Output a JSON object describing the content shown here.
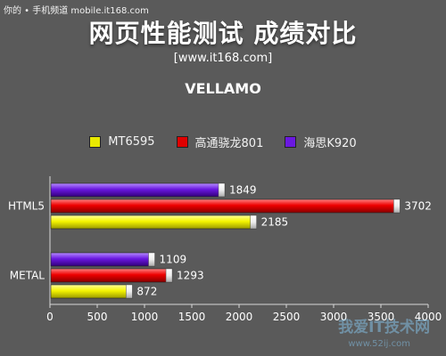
{
  "watermark_top": "你的 • 手机频道 mobile.it168.com",
  "watermark_bottom": "我爱IT技术网",
  "watermark_bottom_url": "www.52ij.com",
  "colors": {
    "series_0": "#e8e800",
    "series_1": "#e00000",
    "series_2": "#6a18e0"
  },
  "chart_data": {
    "type": "bar",
    "orientation": "horizontal",
    "title": "网页性能测试 成绩对比",
    "subtitle": "[www.it168.com]",
    "benchmark": "VELLAMO",
    "categories": [
      "HTML5",
      "METAL"
    ],
    "series": [
      {
        "name": "MT6595",
        "values": [
          2185,
          872
        ]
      },
      {
        "name": "高通骁龙801",
        "values": [
          3702,
          1293
        ]
      },
      {
        "name": "海思K920",
        "values": [
          1849,
          1109
        ]
      }
    ],
    "xlim": [
      0,
      4000
    ],
    "xticks": [
      "0",
      "500",
      "1000",
      "1500",
      "2000",
      "2500",
      "3000",
      "3500",
      "4000"
    ],
    "legend_position": "top"
  }
}
